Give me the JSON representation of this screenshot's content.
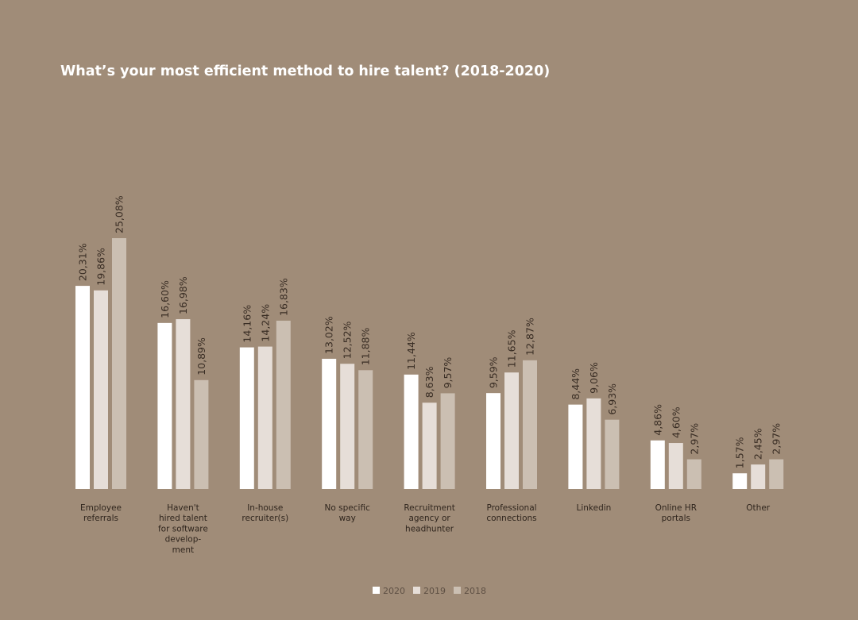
{
  "chart_data": {
    "type": "bar",
    "title": "What’s your most efficient method to hire talent? (2018-2020)",
    "categories": [
      "Employee\nreferrals",
      "Haven't\nhired talent\nfor software\ndevelop-\nment",
      "In-house\nrecruiter(s)",
      "No specific\nway",
      "Recruitment\nagency or\nheadhunter",
      "Professional\nconnections",
      "Linkedin",
      "Online HR\nportals",
      "Other"
    ],
    "series": [
      {
        "name": "2020",
        "color": "#ffffff",
        "values": [
          20.31,
          16.6,
          14.16,
          13.02,
          11.44,
          9.59,
          8.44,
          4.86,
          1.57
        ],
        "labels": [
          "20,31%",
          "16,60%",
          "14,16%",
          "13,02%",
          "11,44%",
          "9,59%",
          "8,44%",
          "4,86%",
          "1,57%"
        ]
      },
      {
        "name": "2019",
        "color": "#e6ded8",
        "values": [
          19.86,
          16.98,
          14.24,
          12.52,
          8.63,
          11.65,
          9.06,
          4.6,
          2.45
        ],
        "labels": [
          "19,86%",
          "16,98%",
          "14,24%",
          "12,52%",
          "8,63%",
          "11,65%",
          "9,06%",
          "4,60%",
          "2,45%"
        ]
      },
      {
        "name": "2018",
        "color": "#cbbfb2",
        "values": [
          25.08,
          10.89,
          16.83,
          11.88,
          9.57,
          12.87,
          6.93,
          2.97,
          2.97
        ],
        "labels": [
          "25,08%",
          "10,89%",
          "16,83%",
          "11,88%",
          "9,57%",
          "12,87%",
          "6,93%",
          "2,97%",
          "2,97%"
        ]
      }
    ],
    "ylim": [
      0,
      25.08
    ],
    "grid": false,
    "legend": "bottom-center",
    "xlabel": "",
    "ylabel": ""
  }
}
